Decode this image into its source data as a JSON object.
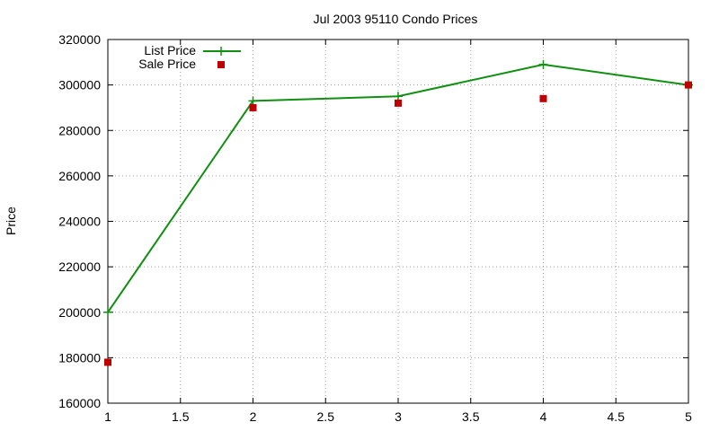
{
  "chart_data": {
    "type": "line",
    "title": "Jul 2003 95110 Condo Prices",
    "xlabel": "",
    "ylabel": "Price",
    "xlim": [
      1,
      5
    ],
    "ylim": [
      160000,
      320000
    ],
    "x_ticks": [
      1,
      1.5,
      2,
      2.5,
      3,
      3.5,
      4,
      4.5,
      5
    ],
    "y_ticks": [
      160000,
      180000,
      200000,
      220000,
      240000,
      260000,
      280000,
      300000,
      320000
    ],
    "grid": true,
    "legend_position": "top-left",
    "series": [
      {
        "name": "List Price",
        "style": "line+cross",
        "color": "#109010",
        "x": [
          1,
          2,
          3,
          4,
          5
        ],
        "values": [
          200000,
          293000,
          295000,
          309000,
          300000
        ]
      },
      {
        "name": "Sale Price",
        "style": "square",
        "color": "#c00000",
        "x": [
          1,
          2,
          3,
          4,
          5
        ],
        "values": [
          178000,
          290000,
          292000,
          294000,
          300000
        ]
      }
    ]
  }
}
